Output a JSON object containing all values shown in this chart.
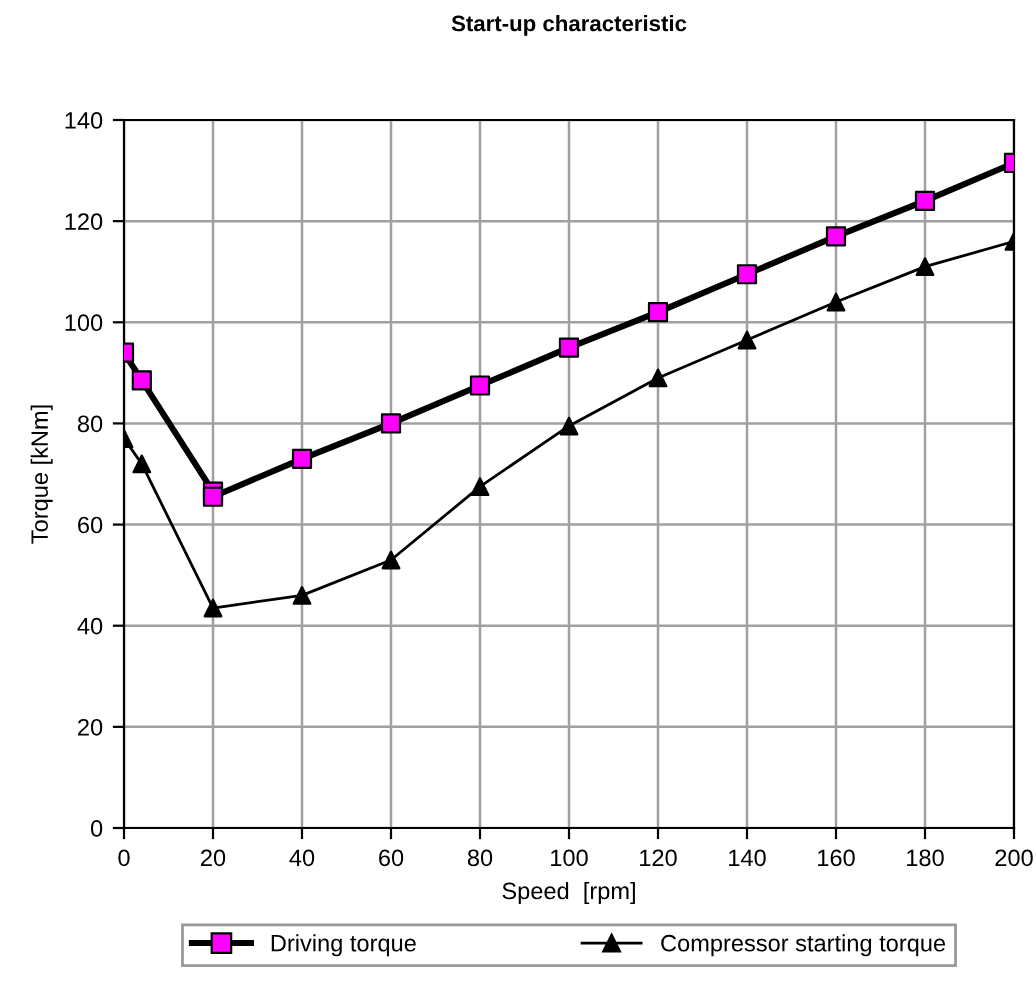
{
  "chart_data": {
    "type": "line",
    "title": "Start-up characteristic",
    "xlabel": "Speed  [rpm]",
    "ylabel": "Torque [kNm]",
    "xlim": [
      0,
      200
    ],
    "xticks": [
      0,
      20,
      40,
      60,
      80,
      100,
      120,
      140,
      160,
      180,
      200
    ],
    "ylim": [
      0,
      140
    ],
    "yticks": [
      0,
      20,
      40,
      60,
      80,
      100,
      120,
      140
    ],
    "grid": true,
    "legend": "bottom",
    "line_style": "solid",
    "series": [
      {
        "name": "Driving torque",
        "color": "#000000",
        "colors": [
          "#ff00ff",
          "#ff00ff",
          "#ff00ff",
          "#ff00ff",
          "#ff00ff",
          "#ff00ff",
          "#ff00ff",
          "#ff00ff",
          "#ff00ff",
          "#ff00ff",
          "#ff00ff",
          "#ff00ff",
          "#ff00ff"
        ],
        "marker": "square",
        "x": [
          0,
          4,
          20,
          20,
          40,
          60,
          80,
          100,
          120,
          140,
          160,
          180,
          200
        ],
        "values": [
          94,
          88.5,
          66.5,
          65.5,
          73,
          80,
          87.5,
          95,
          102,
          109.5,
          117,
          124,
          131.5
        ]
      },
      {
        "name": "Compressor starting torque",
        "color": "#000000",
        "marker": "triangle",
        "x": [
          0,
          4,
          20,
          40,
          60,
          80,
          100,
          120,
          140,
          160,
          180,
          200
        ],
        "values": [
          77,
          72,
          43.5,
          46,
          53,
          67.5,
          79.5,
          89,
          96.5,
          104,
          111,
          116
        ]
      }
    ]
  }
}
